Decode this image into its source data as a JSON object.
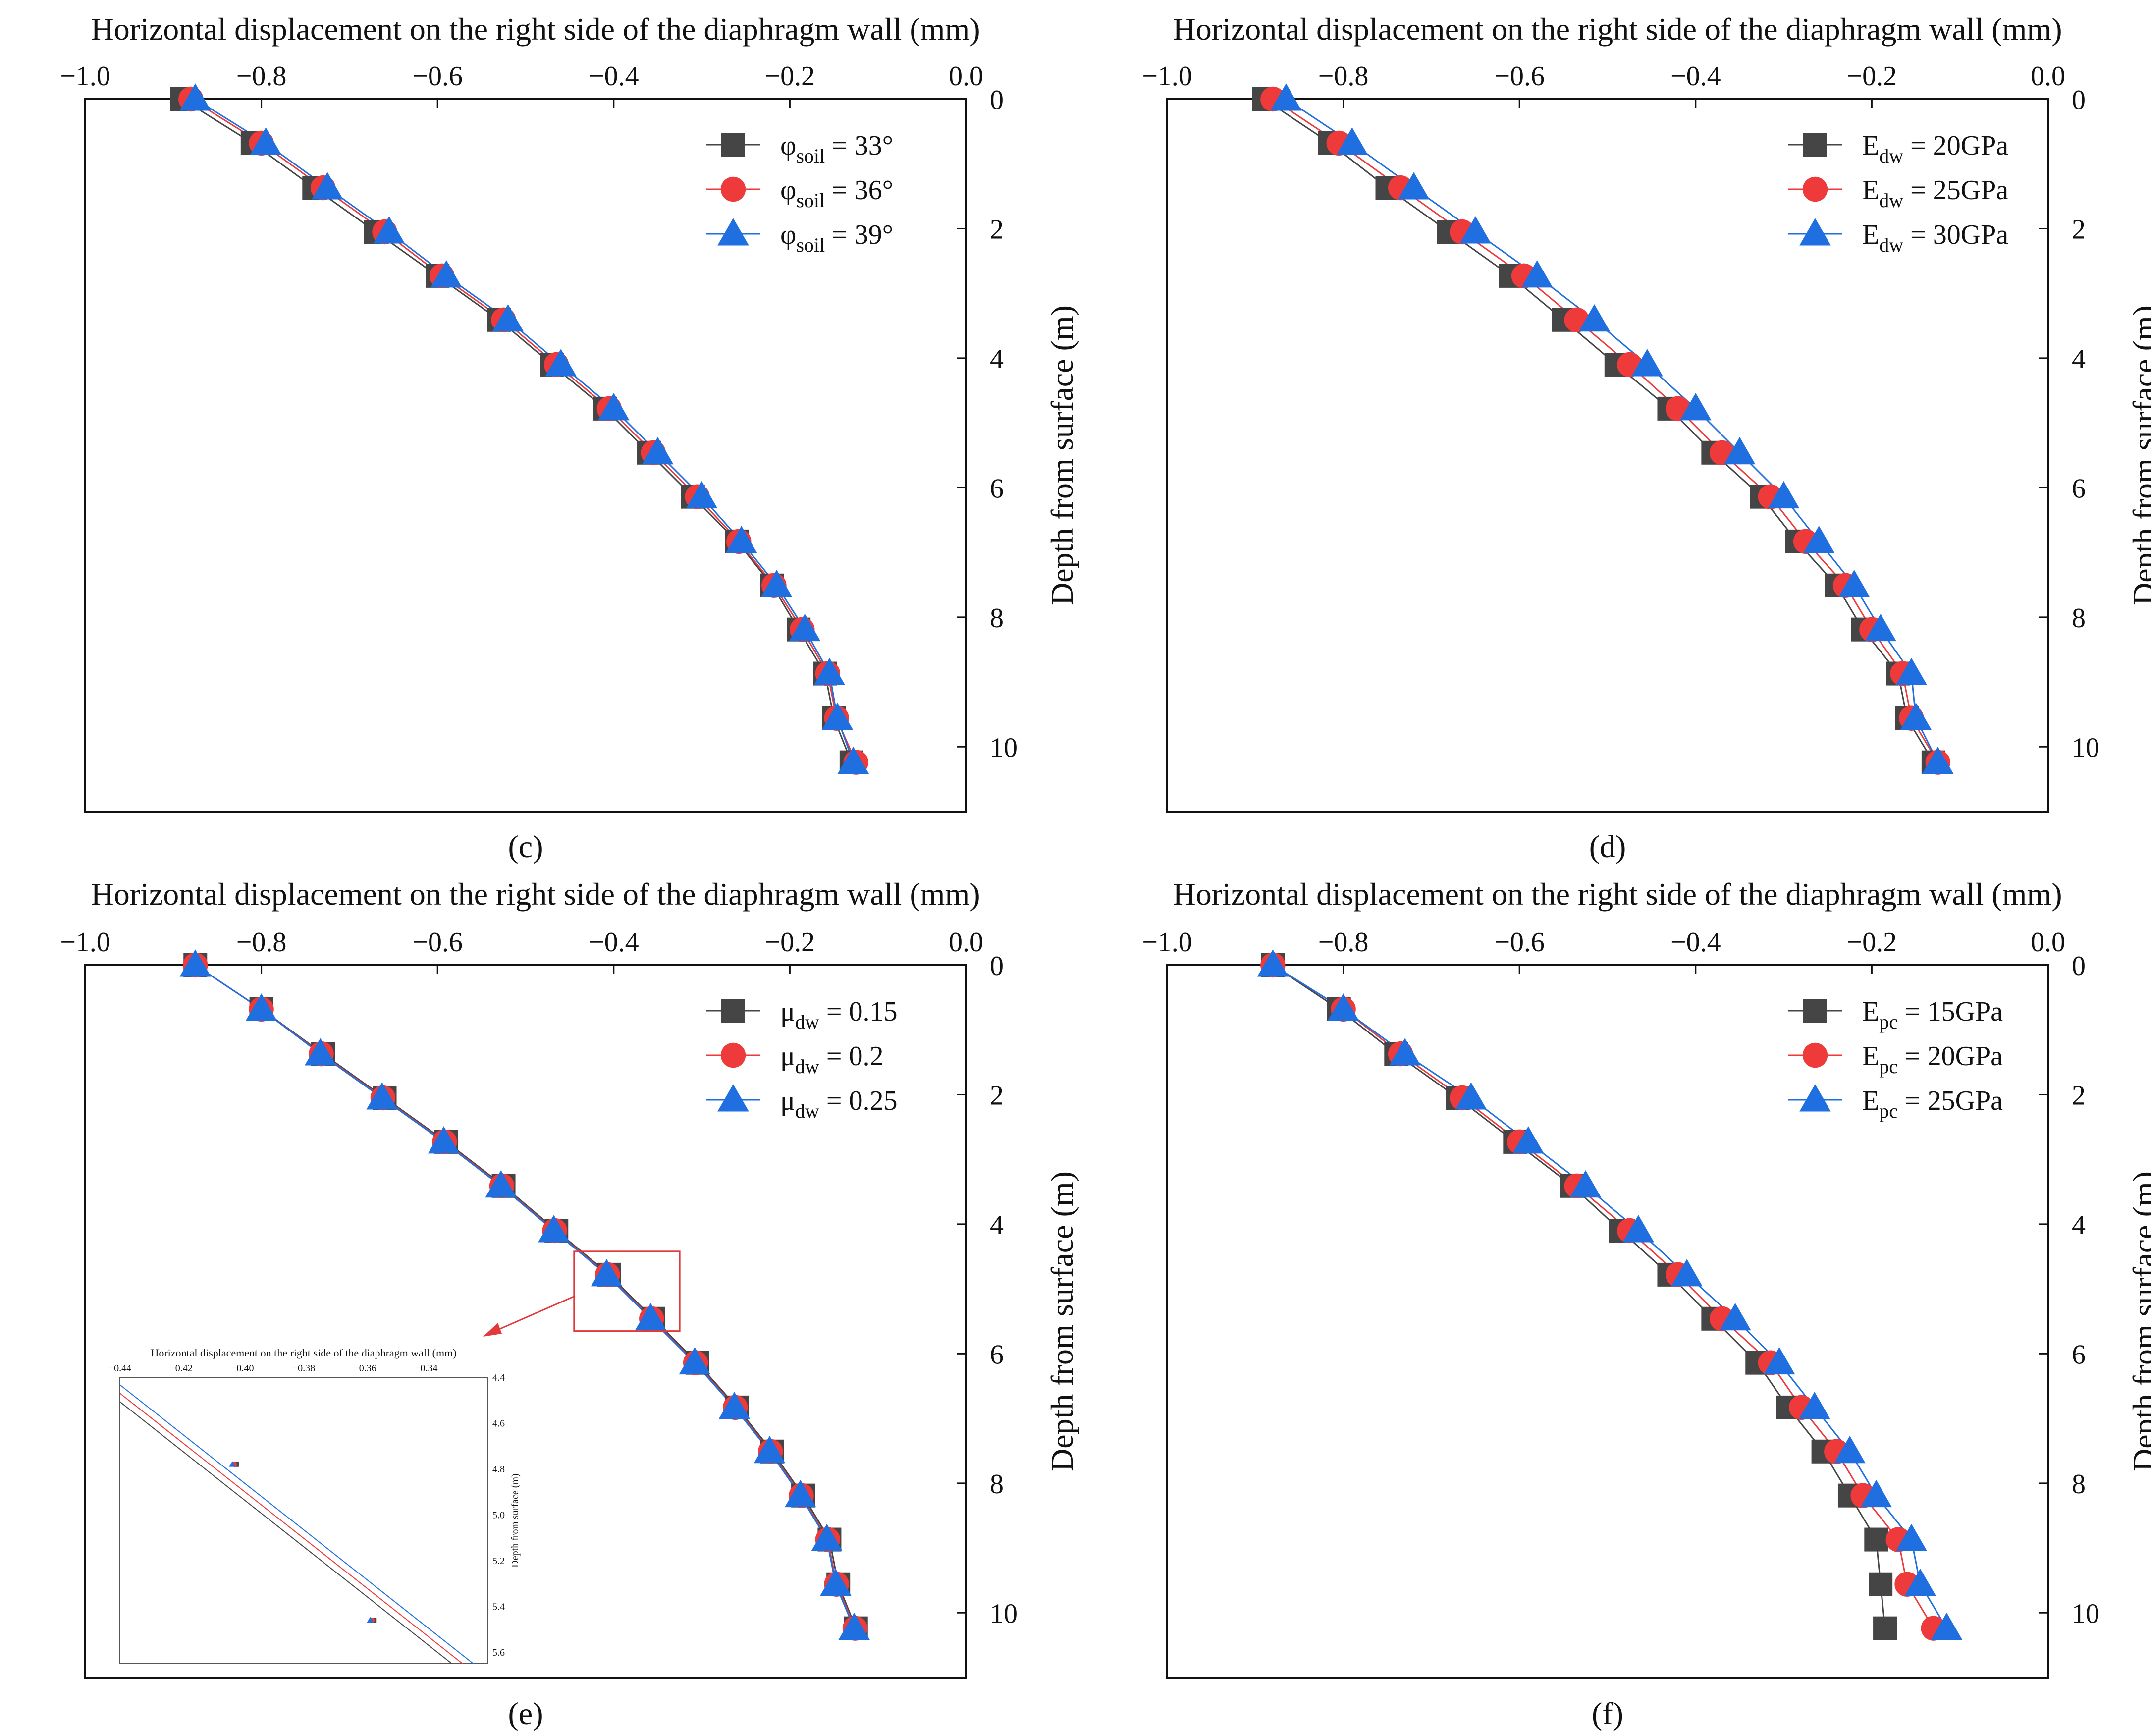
{
  "colors": {
    "series1": "#454545",
    "series2": "#EE3A3A",
    "series3": "#1F6FE0",
    "axis": "#111111",
    "zoom_box": "#E23A3A"
  },
  "depths": [
    0,
    0.68,
    1.37,
    2.05,
    2.73,
    3.41,
    4.1,
    4.78,
    5.46,
    6.14,
    6.83,
    7.51,
    8.19,
    8.87,
    9.56,
    10.24
  ],
  "chart_data": [
    {
      "type": "line",
      "panel_label": "(c)",
      "xlabel": "Horizontal displacement on the right side of the diaphragm wall (mm)",
      "ylabel": "Depth from surface (m)",
      "xlim": [
        -1.0,
        0.0
      ],
      "ylim": [
        0,
        11
      ],
      "x_ticks": [
        "−1.0",
        "−0.8",
        "−0.6",
        "−0.4",
        "−0.2",
        "0.0"
      ],
      "y_ticks": [
        "0",
        "2",
        "4",
        "6",
        "8",
        "10"
      ],
      "legend": "top-right",
      "series": [
        {
          "name_main": "φ",
          "name_sub": "soil",
          "name_rest": " = 33°",
          "marker": "square",
          "x": [
            -0.89,
            -0.81,
            -0.74,
            -0.67,
            -0.6,
            -0.53,
            -0.47,
            -0.41,
            -0.36,
            -0.31,
            -0.26,
            -0.22,
            -0.19,
            -0.16,
            -0.15,
            -0.13
          ]
        },
        {
          "name_main": "φ",
          "name_sub": "soil",
          "name_rest": " = 36°",
          "marker": "circle",
          "x": [
            -0.88,
            -0.8,
            -0.73,
            -0.66,
            -0.595,
            -0.525,
            -0.465,
            -0.405,
            -0.355,
            -0.305,
            -0.258,
            -0.218,
            -0.186,
            -0.157,
            -0.147,
            -0.125
          ]
        },
        {
          "name_main": "φ",
          "name_sub": "soil",
          "name_rest": " = 39°",
          "marker": "triangle",
          "x": [
            -0.875,
            -0.795,
            -0.725,
            -0.655,
            -0.59,
            -0.52,
            -0.46,
            -0.4,
            -0.35,
            -0.3,
            -0.255,
            -0.215,
            -0.183,
            -0.155,
            -0.146,
            -0.128
          ]
        }
      ]
    },
    {
      "type": "line",
      "panel_label": "(d)",
      "xlabel": "Horizontal displacement on the right side of the diaphragm wall (mm)",
      "ylabel": "Depth from surface (m)",
      "xlim": [
        -1.0,
        0.0
      ],
      "ylim": [
        0,
        11
      ],
      "x_ticks": [
        "−1.0",
        "−0.8",
        "−0.6",
        "−0.4",
        "−0.2",
        "0.0"
      ],
      "y_ticks": [
        "0",
        "2",
        "4",
        "6",
        "8",
        "10"
      ],
      "legend": "top-right",
      "series": [
        {
          "name_main": "E",
          "name_sub": "dw",
          "name_rest": " = 20GPa",
          "marker": "square",
          "x": [
            -0.89,
            -0.815,
            -0.75,
            -0.68,
            -0.61,
            -0.55,
            -0.49,
            -0.43,
            -0.38,
            -0.325,
            -0.285,
            -0.24,
            -0.21,
            -0.17,
            -0.16,
            -0.13
          ]
        },
        {
          "name_main": "E",
          "name_sub": "dw",
          "name_rest": " = 25GPa",
          "marker": "circle",
          "x": [
            -0.88,
            -0.805,
            -0.735,
            -0.665,
            -0.595,
            -0.535,
            -0.475,
            -0.42,
            -0.37,
            -0.315,
            -0.275,
            -0.23,
            -0.2,
            -0.165,
            -0.155,
            -0.125
          ]
        },
        {
          "name_main": "E",
          "name_sub": "dw",
          "name_rest": " = 30GPa",
          "marker": "triangle",
          "x": [
            -0.865,
            -0.79,
            -0.72,
            -0.65,
            -0.58,
            -0.515,
            -0.455,
            -0.4,
            -0.35,
            -0.3,
            -0.26,
            -0.22,
            -0.19,
            -0.155,
            -0.15,
            -0.125
          ]
        }
      ]
    },
    {
      "type": "line",
      "panel_label": "(e)",
      "xlabel": "Horizontal displacement on the right side of the diaphragm wall (mm)",
      "ylabel": "Depth from surface (m)",
      "xlim": [
        -1.0,
        0.0
      ],
      "ylim": [
        0,
        11
      ],
      "x_ticks": [
        "−1.0",
        "−0.8",
        "−0.6",
        "−0.4",
        "−0.2",
        "0.0"
      ],
      "y_ticks": [
        "0",
        "2",
        "4",
        "6",
        "8",
        "10"
      ],
      "legend": "top-right",
      "series": [
        {
          "name_main": "μ",
          "name_sub": "dw",
          "name_rest": " = 0.15",
          "marker": "square",
          "x": [
            -0.875,
            -0.8,
            -0.73,
            -0.66,
            -0.59,
            -0.525,
            -0.465,
            -0.405,
            -0.355,
            -0.305,
            -0.26,
            -0.22,
            -0.185,
            -0.155,
            -0.145,
            -0.125
          ]
        },
        {
          "name_main": "μ",
          "name_sub": "dw",
          "name_rest": " = 0.2",
          "marker": "circle",
          "x": [
            -0.875,
            -0.8,
            -0.732,
            -0.662,
            -0.592,
            -0.527,
            -0.467,
            -0.407,
            -0.357,
            -0.307,
            -0.262,
            -0.222,
            -0.187,
            -0.157,
            -0.147,
            -0.126
          ]
        },
        {
          "name_main": "μ",
          "name_sub": "dw",
          "name_rest": " = 0.25",
          "marker": "triangle",
          "x": [
            -0.875,
            -0.8,
            -0.733,
            -0.663,
            -0.593,
            -0.528,
            -0.468,
            -0.408,
            -0.358,
            -0.308,
            -0.263,
            -0.223,
            -0.188,
            -0.158,
            -0.148,
            -0.127
          ]
        }
      ],
      "inset": {
        "xlabel": "Horizontal displacement on the right side of the diaphragm wall (mm)",
        "ylabel": "Depth from surface (m)",
        "xlim": [
          -0.44,
          -0.32
        ],
        "ylim": [
          4.4,
          5.65
        ],
        "x_ticks": [
          "−0.44",
          "−0.42",
          "−0.40",
          "−0.38",
          "−0.36",
          "−0.34"
        ],
        "y_ticks": [
          "4.4",
          "4.6",
          "4.8",
          "5.0",
          "5.2",
          "5.4",
          "5.6"
        ]
      }
    },
    {
      "type": "line",
      "panel_label": "(f)",
      "xlabel": "Horizontal displacement on the right side of the diaphragm wall (mm)",
      "ylabel": "Depth from surface (m)",
      "xlim": [
        -1.0,
        0.0
      ],
      "ylim": [
        0,
        11
      ],
      "x_ticks": [
        "−1.0",
        "−0.8",
        "−0.6",
        "−0.4",
        "−0.2",
        "0.0"
      ],
      "y_ticks": [
        "0",
        "2",
        "4",
        "6",
        "8",
        "10"
      ],
      "legend": "top-right",
      "series": [
        {
          "name_main": "E",
          "name_sub": "pc",
          "name_rest": " = 15GPa",
          "marker": "square",
          "x": [
            -0.88,
            -0.805,
            -0.74,
            -0.67,
            -0.605,
            -0.54,
            -0.485,
            -0.43,
            -0.38,
            -0.33,
            -0.295,
            -0.255,
            -0.225,
            -0.195,
            -0.19,
            -0.185
          ]
        },
        {
          "name_main": "E",
          "name_sub": "pc",
          "name_rest": " = 20GPa",
          "marker": "circle",
          "x": [
            -0.88,
            -0.8,
            -0.735,
            -0.665,
            -0.6,
            -0.535,
            -0.475,
            -0.42,
            -0.37,
            -0.315,
            -0.28,
            -0.24,
            -0.21,
            -0.17,
            -0.16,
            -0.13
          ]
        },
        {
          "name_main": "E",
          "name_sub": "pc",
          "name_rest": " = 25GPa",
          "marker": "triangle",
          "x": [
            -0.88,
            -0.8,
            -0.73,
            -0.655,
            -0.59,
            -0.525,
            -0.465,
            -0.41,
            -0.355,
            -0.305,
            -0.265,
            -0.225,
            -0.195,
            -0.155,
            -0.145,
            -0.115
          ]
        }
      ]
    }
  ]
}
